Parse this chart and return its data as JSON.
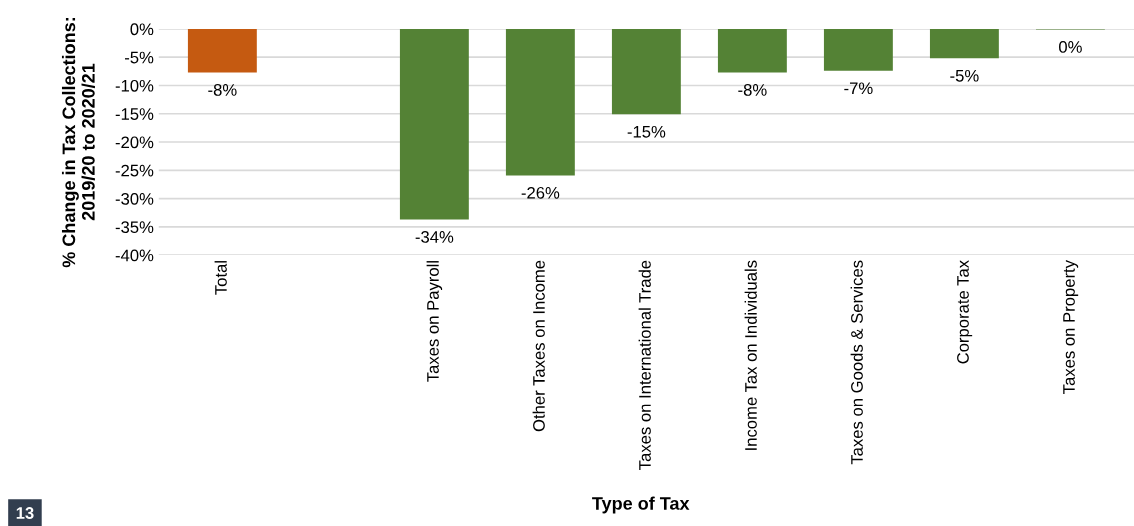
{
  "chart_data": {
    "type": "bar",
    "categories": [
      "Total",
      null,
      "Taxes on Payroll",
      "Other Taxes on Income",
      "Taxes on International Trade",
      "Income Tax on Individuals",
      "Taxes on Goods & Services",
      "Corporate Tax",
      "Taxes on Property"
    ],
    "values": [
      -7.7,
      null,
      -33.7,
      -25.9,
      -15.1,
      -7.7,
      -7.4,
      -5.2,
      -0.1
    ],
    "colors": [
      "#c55a11",
      null,
      "#548235",
      "#548235",
      "#548235",
      "#548235",
      "#548235",
      "#548235",
      "#548235"
    ],
    "value_labels": [
      "-8%",
      null,
      "-34%",
      "-26%",
      "-15%",
      "-8%",
      "-7%",
      "-5%",
      "0%"
    ],
    "ylim": [
      -40,
      0
    ],
    "yticks": [
      {
        "value": -40,
        "label": "-40%"
      },
      {
        "value": -35,
        "label": "-35%"
      },
      {
        "value": -30,
        "label": "-30%"
      },
      {
        "value": -25,
        "label": "-25%"
      },
      {
        "value": -20,
        "label": "-20%"
      },
      {
        "value": -15,
        "label": "-15%"
      },
      {
        "value": -10,
        "label": "-10%"
      },
      {
        "value": -5,
        "label": "-5%"
      },
      {
        "value": 0,
        "label": "0%"
      }
    ],
    "xlabel": "Type of Tax",
    "ylabel": "% Change in Tax Collections:\n2019/20 to 2020/21",
    "grid": "y",
    "annotations": [
      "13"
    ]
  }
}
